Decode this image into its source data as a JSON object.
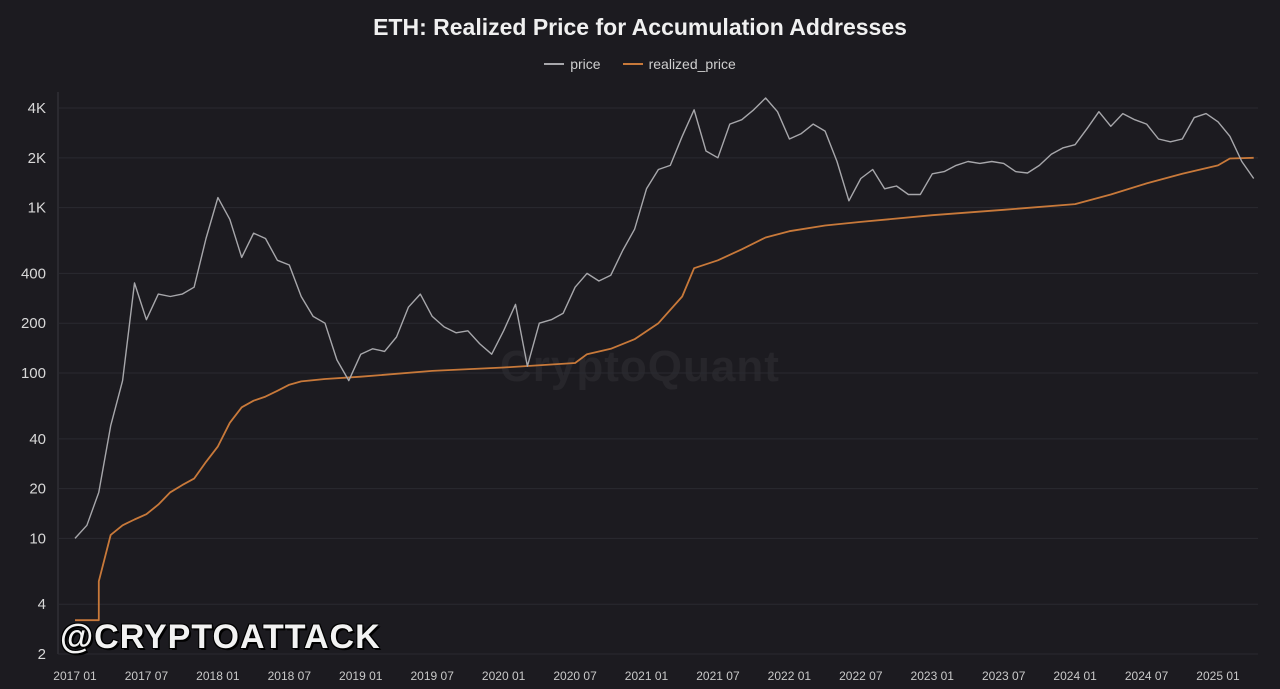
{
  "chart_data": {
    "type": "line",
    "title": "ETH: Realized Price for Accumulation Addresses",
    "xlabel": "",
    "ylabel": "",
    "y_scale": "log",
    "ylim": [
      2,
      5000
    ],
    "y_ticks": [
      {
        "value": 2,
        "label": "2"
      },
      {
        "value": 4,
        "label": "4"
      },
      {
        "value": 10,
        "label": "10"
      },
      {
        "value": 20,
        "label": "20"
      },
      {
        "value": 40,
        "label": "40"
      },
      {
        "value": 100,
        "label": "100"
      },
      {
        "value": 200,
        "label": "200"
      },
      {
        "value": 400,
        "label": "400"
      },
      {
        "value": 1000,
        "label": "1K"
      },
      {
        "value": 2000,
        "label": "2K"
      },
      {
        "value": 4000,
        "label": "4K"
      }
    ],
    "x_ticks": [
      "2017 01",
      "2017 07",
      "2018 01",
      "2018 07",
      "2019 01",
      "2019 07",
      "2020 01",
      "2020 07",
      "2021 01",
      "2021 07",
      "2022 01",
      "2022 07",
      "2023 01",
      "2023 07",
      "2024 01",
      "2024 07",
      "2025 01"
    ],
    "grid": true,
    "legend_position": "top-center",
    "series": [
      {
        "name": "price",
        "color": "#a7a7ab",
        "points": [
          [
            "2017 01",
            10
          ],
          [
            "2017 02",
            12
          ],
          [
            "2017 03",
            19
          ],
          [
            "2017 04",
            48
          ],
          [
            "2017 05",
            90
          ],
          [
            "2017 06",
            350
          ],
          [
            "2017 07",
            210
          ],
          [
            "2017 08",
            300
          ],
          [
            "2017 09",
            290
          ],
          [
            "2017 10",
            300
          ],
          [
            "2017 11",
            330
          ],
          [
            "2017 12",
            650
          ],
          [
            "2018 01",
            1150
          ],
          [
            "2018 02",
            850
          ],
          [
            "2018 03",
            500
          ],
          [
            "2018 04",
            700
          ],
          [
            "2018 05",
            650
          ],
          [
            "2018 06",
            480
          ],
          [
            "2018 07",
            450
          ],
          [
            "2018 08",
            290
          ],
          [
            "2018 09",
            220
          ],
          [
            "2018 10",
            200
          ],
          [
            "2018 11",
            120
          ],
          [
            "2018 12",
            90
          ],
          [
            "2019 01",
            130
          ],
          [
            "2019 02",
            140
          ],
          [
            "2019 03",
            135
          ],
          [
            "2019 04",
            165
          ],
          [
            "2019 05",
            250
          ],
          [
            "2019 06",
            300
          ],
          [
            "2019 07",
            220
          ],
          [
            "2019 08",
            190
          ],
          [
            "2019 09",
            175
          ],
          [
            "2019 10",
            180
          ],
          [
            "2019 11",
            150
          ],
          [
            "2019 12",
            130
          ],
          [
            "2020 01",
            180
          ],
          [
            "2020 02",
            260
          ],
          [
            "2020 03",
            110
          ],
          [
            "2020 04",
            200
          ],
          [
            "2020 05",
            210
          ],
          [
            "2020 06",
            230
          ],
          [
            "2020 07",
            330
          ],
          [
            "2020 08",
            400
          ],
          [
            "2020 09",
            360
          ],
          [
            "2020 10",
            390
          ],
          [
            "2020 11",
            550
          ],
          [
            "2020 12",
            740
          ],
          [
            "2021 01",
            1300
          ],
          [
            "2021 02",
            1700
          ],
          [
            "2021 03",
            1800
          ],
          [
            "2021 04",
            2700
          ],
          [
            "2021 05",
            3900
          ],
          [
            "2021 06",
            2200
          ],
          [
            "2021 07",
            2000
          ],
          [
            "2021 08",
            3200
          ],
          [
            "2021 09",
            3400
          ],
          [
            "2021 10",
            3900
          ],
          [
            "2021 11",
            4600
          ],
          [
            "2021 12",
            3800
          ],
          [
            "2022 01",
            2600
          ],
          [
            "2022 02",
            2800
          ],
          [
            "2022 03",
            3200
          ],
          [
            "2022 04",
            2900
          ],
          [
            "2022 05",
            1900
          ],
          [
            "2022 06",
            1100
          ],
          [
            "2022 07",
            1500
          ],
          [
            "2022 08",
            1700
          ],
          [
            "2022 09",
            1300
          ],
          [
            "2022 10",
            1350
          ],
          [
            "2022 11",
            1200
          ],
          [
            "2022 12",
            1200
          ],
          [
            "2023 01",
            1600
          ],
          [
            "2023 02",
            1650
          ],
          [
            "2023 03",
            1800
          ],
          [
            "2023 04",
            1900
          ],
          [
            "2023 05",
            1850
          ],
          [
            "2023 06",
            1900
          ],
          [
            "2023 07",
            1850
          ],
          [
            "2023 08",
            1650
          ],
          [
            "2023 09",
            1620
          ],
          [
            "2023 10",
            1800
          ],
          [
            "2023 11",
            2100
          ],
          [
            "2023 12",
            2300
          ],
          [
            "2024 01",
            2400
          ],
          [
            "2024 02",
            3000
          ],
          [
            "2024 03",
            3800
          ],
          [
            "2024 04",
            3100
          ],
          [
            "2024 05",
            3700
          ],
          [
            "2024 06",
            3400
          ],
          [
            "2024 07",
            3200
          ],
          [
            "2024 08",
            2600
          ],
          [
            "2024 09",
            2500
          ],
          [
            "2024 10",
            2600
          ],
          [
            "2024 11",
            3500
          ],
          [
            "2024 12",
            3700
          ],
          [
            "2025 01",
            3300
          ],
          [
            "2025 02",
            2700
          ],
          [
            "2025 03",
            1900
          ],
          [
            "2025 04",
            1500
          ]
        ]
      },
      {
        "name": "realized_price",
        "color": "#c8793a",
        "points": [
          [
            "2017 01",
            3.2
          ],
          [
            "2017 03",
            3.2
          ],
          [
            "2017 03",
            5.5
          ],
          [
            "2017 04",
            10.5
          ],
          [
            "2017 05",
            12
          ],
          [
            "2017 06",
            13
          ],
          [
            "2017 07",
            14
          ],
          [
            "2017 08",
            16
          ],
          [
            "2017 09",
            19
          ],
          [
            "2017 10",
            21
          ],
          [
            "2017 11",
            23
          ],
          [
            "2017 12",
            29
          ],
          [
            "2018 01",
            36
          ],
          [
            "2018 02",
            50
          ],
          [
            "2018 03",
            62
          ],
          [
            "2018 04",
            68
          ],
          [
            "2018 05",
            72
          ],
          [
            "2018 06",
            78
          ],
          [
            "2018 07",
            85
          ],
          [
            "2018 08",
            89
          ],
          [
            "2018 10",
            92
          ],
          [
            "2019 01",
            95
          ],
          [
            "2019 07",
            103
          ],
          [
            "2020 01",
            108
          ],
          [
            "2020 07",
            115
          ],
          [
            "2020 08",
            130
          ],
          [
            "2020 10",
            140
          ],
          [
            "2020 12",
            160
          ],
          [
            "2021 02",
            200
          ],
          [
            "2021 04",
            290
          ],
          [
            "2021 05",
            430
          ],
          [
            "2021 07",
            480
          ],
          [
            "2021 09",
            560
          ],
          [
            "2021 11",
            660
          ],
          [
            "2022 01",
            720
          ],
          [
            "2022 04",
            780
          ],
          [
            "2022 07",
            820
          ],
          [
            "2023 01",
            900
          ],
          [
            "2023 07",
            970
          ],
          [
            "2024 01",
            1050
          ],
          [
            "2024 04",
            1200
          ],
          [
            "2024 07",
            1400
          ],
          [
            "2024 10",
            1600
          ],
          [
            "2025 01",
            1800
          ],
          [
            "2025 02",
            1980
          ],
          [
            "2025 04",
            2000
          ]
        ]
      }
    ]
  },
  "watermarks": {
    "brand": "CryptoQuant",
    "handle": "@CRYPTOATTACK"
  }
}
